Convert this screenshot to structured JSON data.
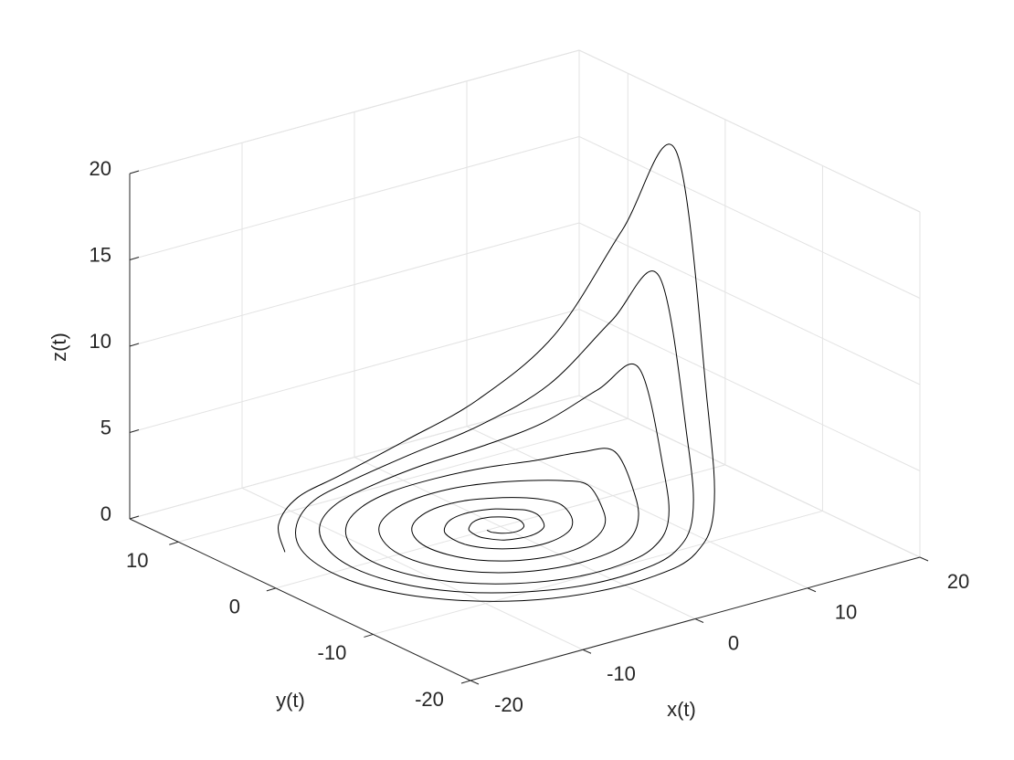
{
  "chart_data": {
    "type": "line3d",
    "xlabel": "x(t)",
    "ylabel": "y(t)",
    "zlabel": "z(t)",
    "color": "#000000",
    "grid": true,
    "xlim": [
      -20,
      20
    ],
    "ylim": [
      -20,
      15
    ],
    "zlim": [
      0,
      20
    ],
    "xticks": [
      -20,
      -10,
      0,
      10,
      20
    ],
    "yticks": [
      -20,
      -10,
      0,
      10
    ],
    "zticks": [
      0,
      5,
      10,
      15,
      20
    ],
    "x": [
      -1.2,
      -1.2,
      -1.0,
      -0.7,
      -0.3,
      0.3,
      0.8,
      1.3,
      1.6,
      1.8,
      1.8,
      1.5,
      1.0,
      0.4,
      -0.4,
      -1.1,
      -1.7,
      -2.2,
      -2.4,
      -2.4,
      -2.0,
      -1.4,
      -0.5,
      0.5,
      1.5,
      2.4,
      3.0,
      3.3,
      3.2,
      2.7,
      1.8,
      0.6,
      -0.7,
      -2.0,
      -3.1,
      -3.9,
      -4.2,
      -4.1,
      -3.4,
      -2.3,
      -0.8,
      0.8,
      2.5,
      3.9,
      5.0,
      5.4,
      5.2,
      4.3,
      2.9,
      1.0,
      -1.1,
      -3.1,
      -4.9,
      -6.1,
      -6.6,
      -6.3,
      -5.3,
      -3.5,
      -1.2,
      1.3,
      3.7,
      5.8,
      7.2,
      7.8,
      7.5,
      6.2,
      4.1,
      1.5,
      -1.5,
      -4.3,
      -6.7,
      -8.3,
      -9.0,
      -8.6,
      -7.1,
      -4.7,
      -1.7,
      1.7,
      4.9,
      7.6,
      9.5,
      10.2,
      9.7,
      8.0,
      5.3,
      1.9,
      -1.9,
      -5.5,
      -8.5,
      -10.6,
      -11.4,
      -10.8,
      -8.9,
      -5.9,
      -2.1,
      2.1,
      6.0,
      9.3,
      11.5,
      12.3,
      11.7,
      9.6,
      6.3,
      2.2,
      -2.2,
      -6.5,
      -10.0,
      -12.3,
      -13.2,
      -12.5,
      -10.3,
      -6.8,
      -2.4,
      2.4,
      6.9,
      10.6,
      13.2,
      14.1,
      13.4,
      11.0,
      7.2,
      2.5,
      -2.5,
      -7.4,
      -11.3,
      -14.0,
      -15.0,
      -14.2,
      -11.6,
      -7.6,
      -2.7,
      2.7,
      7.7,
      11.8,
      14.6,
      15.6,
      14.7,
      12.1,
      7.9,
      2.8,
      -2.8,
      -8.0,
      -12.3,
      -15.2
    ],
    "y": [
      0,
      -0.4,
      -0.7,
      -1.0,
      -1.2,
      -1.3,
      -1.2,
      -0.9,
      -0.5,
      0,
      0.5,
      1.0,
      1.4,
      1.7,
      1.8,
      1.6,
      1.2,
      0.7,
      0,
      -0.7,
      -1.4,
      -2.0,
      -2.3,
      -2.4,
      -2.2,
      -1.7,
      -0.9,
      0,
      1.0,
      1.9,
      2.6,
      3.0,
      3.1,
      2.8,
      2.1,
      1.2,
      0,
      -1.2,
      -2.4,
      -3.3,
      -3.9,
      -4.0,
      -3.6,
      -2.8,
      -1.5,
      0,
      1.6,
      3.0,
      4.2,
      4.9,
      5.0,
      4.5,
      3.4,
      1.8,
      0,
      -1.9,
      -3.7,
      -5.1,
      -5.9,
      -6.0,
      -5.3,
      -4.0,
      -2.2,
      0,
      2.3,
      4.3,
      5.9,
      6.8,
      7.0,
      6.2,
      4.7,
      2.5,
      0,
      -2.6,
      -5.0,
      -6.8,
      -7.8,
      -7.9,
      -7.1,
      -5.3,
      -2.9,
      0,
      2.9,
      5.6,
      7.7,
      8.8,
      8.9,
      7.9,
      6.0,
      3.2,
      0,
      -3.3,
      -6.2,
      -8.4,
      -9.7,
      -9.8,
      -8.7,
      -6.5,
      -3.5,
      0,
      3.5,
      6.7,
      9.1,
      10.4,
      10.5,
      9.3,
      7.0,
      3.7,
      0,
      -3.8,
      -7.2,
      -9.7,
      -11.2,
      -11.3,
      -10.0,
      -7.5,
      -4.0,
      0,
      4.1,
      7.7,
      10.4,
      11.9,
      12.0,
      10.6,
      7.9,
      4.3,
      0,
      -4.3,
      -8.1,
      -11.0,
      -12.5,
      -12.6,
      -11.1,
      -8.3,
      -4.4,
      0,
      4.5,
      8.4,
      11.4,
      13.0,
      13.1,
      11.6,
      8.6,
      4.6
    ],
    "z": [
      0,
      0,
      0,
      0,
      0,
      0,
      0,
      0,
      0,
      0,
      0,
      0,
      0,
      0,
      0,
      0,
      0,
      0,
      0,
      0,
      0,
      0,
      0,
      0,
      0,
      0,
      0,
      0.1,
      0.1,
      0,
      0,
      0,
      0,
      0,
      0,
      0,
      0,
      0,
      0,
      0,
      0,
      0,
      0,
      0,
      0.1,
      0.3,
      0.2,
      0.1,
      0,
      0,
      0,
      0,
      0,
      0,
      0,
      0,
      0,
      0,
      0,
      0,
      0,
      0.1,
      0.3,
      1,
      0.7,
      0.4,
      0.2,
      0.1,
      0,
      0,
      0,
      0,
      0,
      0,
      0,
      0,
      0,
      0,
      0,
      0.2,
      0.8,
      2.5,
      1.8,
      0.9,
      0.4,
      0.1,
      0,
      0,
      0,
      0,
      0,
      0,
      0,
      0,
      0,
      0,
      0,
      0.4,
      2.1,
      7,
      4.9,
      2.5,
      1.1,
      0.4,
      0,
      0,
      0,
      0,
      0,
      0,
      0,
      0,
      0,
      0,
      0,
      0.7,
      3.6,
      12,
      8.4,
      4.2,
      1.8,
      0.6,
      0,
      0,
      0,
      0,
      0,
      0,
      0,
      0,
      0,
      0,
      0,
      1.1,
      5.7,
      19,
      13.3,
      6.7,
      2.9,
      1.0,
      0,
      0,
      0,
      0
    ]
  }
}
